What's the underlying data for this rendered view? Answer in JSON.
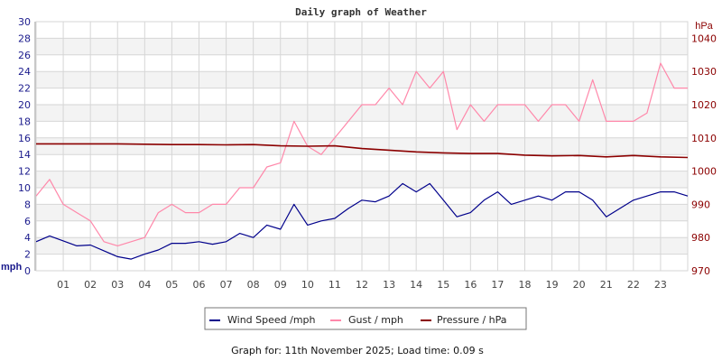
{
  "chart_data": {
    "type": "line",
    "title": "Daily graph of Weather",
    "ylabel": "mph",
    "y2label": "hPa",
    "ylim": [
      0,
      30
    ],
    "y2lim": [
      970,
      1045
    ],
    "xlim": [
      0,
      24
    ],
    "yticks": [
      0,
      2,
      4,
      6,
      8,
      10,
      12,
      14,
      16,
      18,
      20,
      22,
      24,
      26,
      28,
      30
    ],
    "y2ticks": [
      970,
      980,
      990,
      1000,
      1010,
      1020,
      1030,
      1040
    ],
    "xticks": [
      "01",
      "02",
      "03",
      "04",
      "05",
      "06",
      "07",
      "08",
      "09",
      "10",
      "11",
      "12",
      "13",
      "14",
      "15",
      "16",
      "17",
      "18",
      "19",
      "20",
      "21",
      "22",
      "23"
    ],
    "grid": true,
    "legend_placement": "bottom",
    "series": [
      {
        "name": "Wind Speed /mph",
        "axis": "left",
        "color": "#00008b",
        "x": [
          0,
          0.5,
          1,
          1.5,
          2,
          2.5,
          3,
          3.5,
          4,
          4.5,
          5,
          5.5,
          6,
          6.5,
          7,
          7.5,
          8,
          8.5,
          9,
          9.5,
          10,
          10.5,
          11,
          11.5,
          12,
          12.5,
          13,
          13.5,
          14,
          14.5,
          15,
          15.5,
          16,
          16.5,
          17,
          17.5,
          18,
          18.5,
          19,
          19.5,
          20,
          20.5,
          21,
          21.5,
          22,
          22.5,
          23,
          23.5,
          24
        ],
        "values": [
          3.5,
          4.2,
          3.6,
          3.0,
          3.1,
          2.4,
          1.7,
          1.4,
          2.0,
          2.5,
          3.3,
          3.3,
          3.5,
          3.2,
          3.5,
          4.5,
          4.0,
          5.5,
          5.0,
          8.0,
          5.5,
          6.0,
          6.3,
          7.5,
          8.5,
          8.3,
          9.0,
          10.5,
          9.5,
          10.5,
          8.5,
          6.5,
          7.0,
          8.5,
          9.5,
          8.0,
          8.5,
          9.0,
          8.5,
          9.5,
          9.5,
          8.5,
          6.5,
          7.5,
          8.5,
          9.0,
          9.5,
          9.5,
          9.0
        ]
      },
      {
        "name": "Gust / mph",
        "axis": "left",
        "color": "#ff88aa",
        "x": [
          0,
          0.5,
          1,
          1.5,
          2,
          2.5,
          3,
          3.5,
          4,
          4.5,
          5,
          5.5,
          6,
          6.5,
          7,
          7.5,
          8,
          8.5,
          9,
          9.5,
          10,
          10.5,
          11,
          11.5,
          12,
          12.5,
          13,
          13.5,
          14,
          14.5,
          15,
          15.5,
          16,
          16.5,
          17,
          17.5,
          18,
          18.5,
          19,
          19.5,
          20,
          20.5,
          21,
          21.5,
          22,
          22.5,
          23,
          23.5,
          24
        ],
        "values": [
          9,
          11,
          8,
          7,
          6,
          3.5,
          3,
          3.5,
          4,
          7,
          8,
          7,
          7,
          8,
          8,
          10,
          10,
          12.5,
          13,
          18,
          15,
          14,
          16,
          18,
          20,
          20,
          22,
          20,
          24,
          22,
          24,
          17,
          20,
          18,
          20,
          20,
          20,
          18,
          20,
          20,
          18,
          23,
          18,
          18,
          18,
          19,
          25,
          22,
          22
        ]
      },
      {
        "name": "Pressure / hPa",
        "axis": "right",
        "color": "#8b0000",
        "x": [
          0,
          1,
          2,
          3,
          4,
          5,
          6,
          7,
          8,
          9,
          10,
          11,
          12,
          13,
          14,
          15,
          16,
          17,
          18,
          19,
          20,
          21,
          22,
          23,
          24
        ],
        "values": [
          1008.2,
          1008.2,
          1008.2,
          1008.2,
          1008.1,
          1008.0,
          1008.0,
          1007.9,
          1008.0,
          1007.6,
          1007.5,
          1007.6,
          1006.8,
          1006.3,
          1005.8,
          1005.5,
          1005.3,
          1005.3,
          1004.8,
          1004.6,
          1004.7,
          1004.3,
          1004.7,
          1004.3,
          1004.1
        ]
      }
    ]
  },
  "footer": "Graph for: 11th November 2025; Load time: 0.09 s"
}
